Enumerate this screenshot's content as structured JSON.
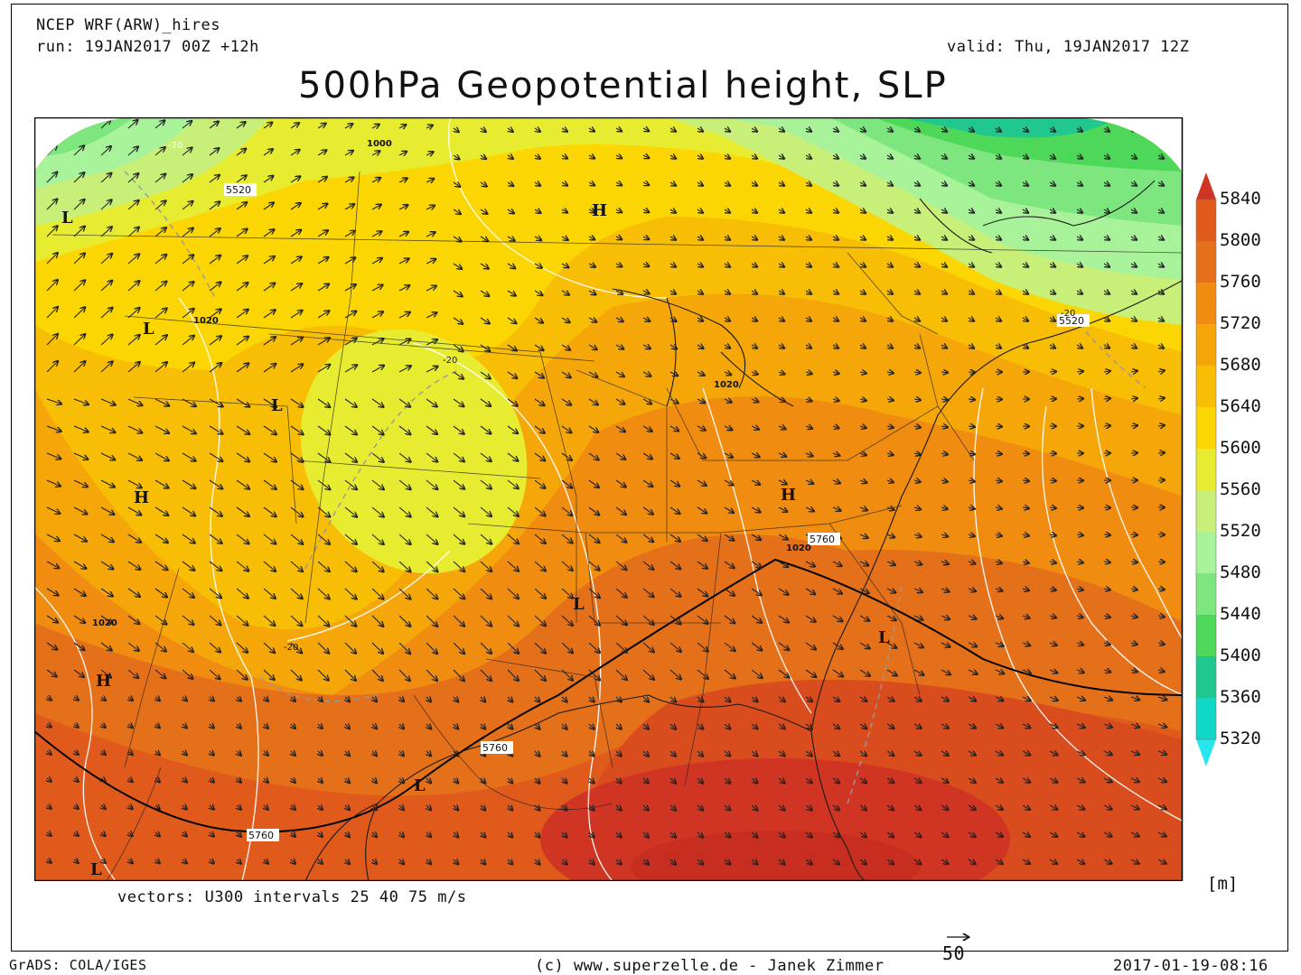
{
  "header": {
    "model": "NCEP WRF(ARW)_hires",
    "run": "run: 19JAN2017 00Z +12h",
    "valid": "valid: Thu, 19JAN2017 12Z",
    "title": "500hPa Geopotential height, SLP"
  },
  "colorbar": {
    "unit": "[m]",
    "levels": [
      "5840",
      "5800",
      "5760",
      "5720",
      "5680",
      "5640",
      "5600",
      "5560",
      "5520",
      "5480",
      "5440",
      "5400",
      "5360",
      "5320"
    ],
    "colors": [
      "#d03422",
      "#e05a1c",
      "#e5701a",
      "#f08c10",
      "#f5a70a",
      "#f8bd05",
      "#fbd602",
      "#e8ec30",
      "#c8f078",
      "#a8f39a",
      "#7ee67e",
      "#4ed85a",
      "#20c890",
      "#10d8c8",
      "#28e6ee"
    ]
  },
  "map": {
    "pressure_systems": [
      {
        "letter": "L"
      },
      {
        "letter": "L"
      },
      {
        "letter": "L"
      },
      {
        "letter": "H"
      },
      {
        "letter": "H"
      },
      {
        "letter": "H"
      },
      {
        "letter": "H"
      },
      {
        "letter": "L"
      },
      {
        "letter": "L"
      },
      {
        "letter": "L"
      },
      {
        "letter": "L"
      }
    ],
    "contour_labels": [
      "5520",
      "1000",
      "-20",
      "1020",
      "1020",
      "-20",
      "1020",
      "5760",
      "1020",
      "-20",
      "5760",
      "5760",
      "5520",
      "-20"
    ]
  },
  "footer": {
    "vectors": "vectors: U300 intervals 25 40 75 m/s",
    "grads": "GrADS: COLA/IGES",
    "credit": "(c) www.superzelle.de - Janek Zimmer",
    "ref_vector": "50",
    "timestamp": "2017-01-19-08:16"
  }
}
